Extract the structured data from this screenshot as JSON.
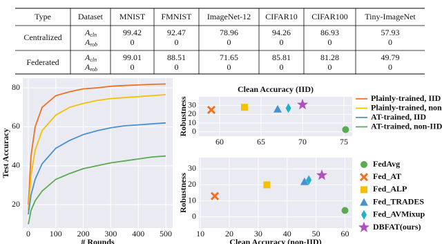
{
  "table": {
    "header": [
      "Type",
      "Dataset",
      "MNIST",
      "FMNIST",
      "ImageNet-12",
      "CIFAR10",
      "CIFAR100",
      "Tiny-ImageNet"
    ],
    "groups": [
      {
        "type": "Centralized",
        "rows": [
          {
            "symbol": "A",
            "sub": "cln",
            "values": [
              "99.42",
              "92.47",
              "78.96",
              "94.26",
              "86.93",
              "57.93"
            ]
          },
          {
            "symbol": "A",
            "sub": "rob",
            "values": [
              "0",
              "0",
              "0",
              "0",
              "0",
              "0"
            ]
          }
        ]
      },
      {
        "type": "Federated",
        "rows": [
          {
            "symbol": "A",
            "sub": "cln",
            "values": [
              "99.01",
              "88.51",
              "71.65",
              "85.81",
              "81.28",
              "49.79"
            ]
          },
          {
            "symbol": "A",
            "sub": "rob",
            "values": [
              "0",
              "0",
              "0",
              "0",
              "0",
              "0"
            ]
          }
        ]
      }
    ]
  },
  "chart_data": [
    {
      "type": "line",
      "xlabel": "# Rounds",
      "ylabel": "Test  Accuracy",
      "x": [
        0,
        10,
        25,
        50,
        100,
        150,
        200,
        250,
        300,
        350,
        400,
        450,
        500
      ],
      "xlim": [
        -20,
        525
      ],
      "ylim": [
        8,
        85
      ],
      "xticks": [
        0,
        100,
        200,
        300,
        400,
        500
      ],
      "yticks": [
        20,
        40,
        60,
        80
      ],
      "series": [
        {
          "name": "Plainly-trained, IID",
          "color": "#f07020",
          "values": [
            20,
            45,
            60,
            70,
            76,
            78,
            79.5,
            80,
            80.8,
            81.2,
            81.5,
            81.8,
            82
          ]
        },
        {
          "name": "Plainly-trained, non-IID",
          "color": "#f5c000",
          "values": [
            17,
            35,
            48,
            58,
            66,
            70,
            72,
            73.5,
            74.5,
            75,
            75.5,
            76,
            76.5
          ]
        },
        {
          "name": "AT-trained, IID",
          "color": "#4a90d0",
          "values": [
            15,
            25,
            33,
            41,
            49,
            53,
            56,
            58,
            59.5,
            60.5,
            61,
            61.5,
            62
          ]
        },
        {
          "name": "AT-trained, non-IID",
          "color": "#5aaa50",
          "values": [
            10,
            17,
            22,
            27,
            33,
            36,
            38.5,
            40,
            41.5,
            42.5,
            43.5,
            44.5,
            45
          ]
        }
      ]
    },
    {
      "type": "scatter",
      "title": "Clean Accuracy (IID)",
      "ylabel": "Robustness",
      "xlim": [
        57.5,
        76
      ],
      "ylim": [
        -5,
        40
      ],
      "xticks": [
        60,
        65,
        70,
        75
      ],
      "yticks": [
        0,
        10,
        20,
        30
      ],
      "series": [
        {
          "color": "#5aaa50",
          "marker": "circle",
          "x": [
            75.2
          ],
          "values": [
            2.5
          ]
        },
        {
          "color": "#f07020",
          "marker": "cross",
          "x": [
            59
          ],
          "values": [
            25
          ]
        },
        {
          "color": "#f5c000",
          "marker": "square",
          "x": [
            63
          ],
          "values": [
            28
          ]
        },
        {
          "color": "#4a90d0",
          "marker": "triangle",
          "x": [
            67
          ],
          "values": [
            26
          ]
        },
        {
          "color": "#20b0c8",
          "marker": "diamond",
          "x": [
            68.3
          ],
          "values": [
            27
          ]
        },
        {
          "color": "#b050c0",
          "marker": "star",
          "x": [
            70
          ],
          "values": [
            31
          ]
        }
      ]
    },
    {
      "type": "scatter",
      "xlabel": "Clean Accuracy (non-IID)",
      "ylabel": "Robustness",
      "xlim": [
        9.5,
        62.5
      ],
      "ylim": [
        -7,
        37
      ],
      "xticks": [
        10,
        20,
        30,
        40,
        50,
        60
      ],
      "yticks": [
        0,
        10,
        20,
        30
      ],
      "series": [
        {
          "name": "FedAvg",
          "color": "#5aaa50",
          "marker": "circle",
          "x": [
            60
          ],
          "values": [
            4
          ]
        },
        {
          "name": "Fed_AT",
          "color": "#f07020",
          "marker": "cross",
          "x": [
            15
          ],
          "values": [
            13
          ]
        },
        {
          "name": "Fed_ALP",
          "color": "#f5c000",
          "marker": "square",
          "x": [
            33
          ],
          "values": [
            20
          ]
        },
        {
          "name": "Fed_TRADES",
          "color": "#4a90d0",
          "marker": "triangle",
          "x": [
            46
          ],
          "values": [
            22
          ]
        },
        {
          "name": "Fed_AVMixup",
          "color": "#20b0c8",
          "marker": "diamond",
          "x": [
            47.5
          ],
          "values": [
            23
          ]
        },
        {
          "name": "DBFAT(ours)",
          "color": "#b050c0",
          "marker": "star",
          "x": [
            52
          ],
          "values": [
            26
          ]
        }
      ]
    }
  ]
}
